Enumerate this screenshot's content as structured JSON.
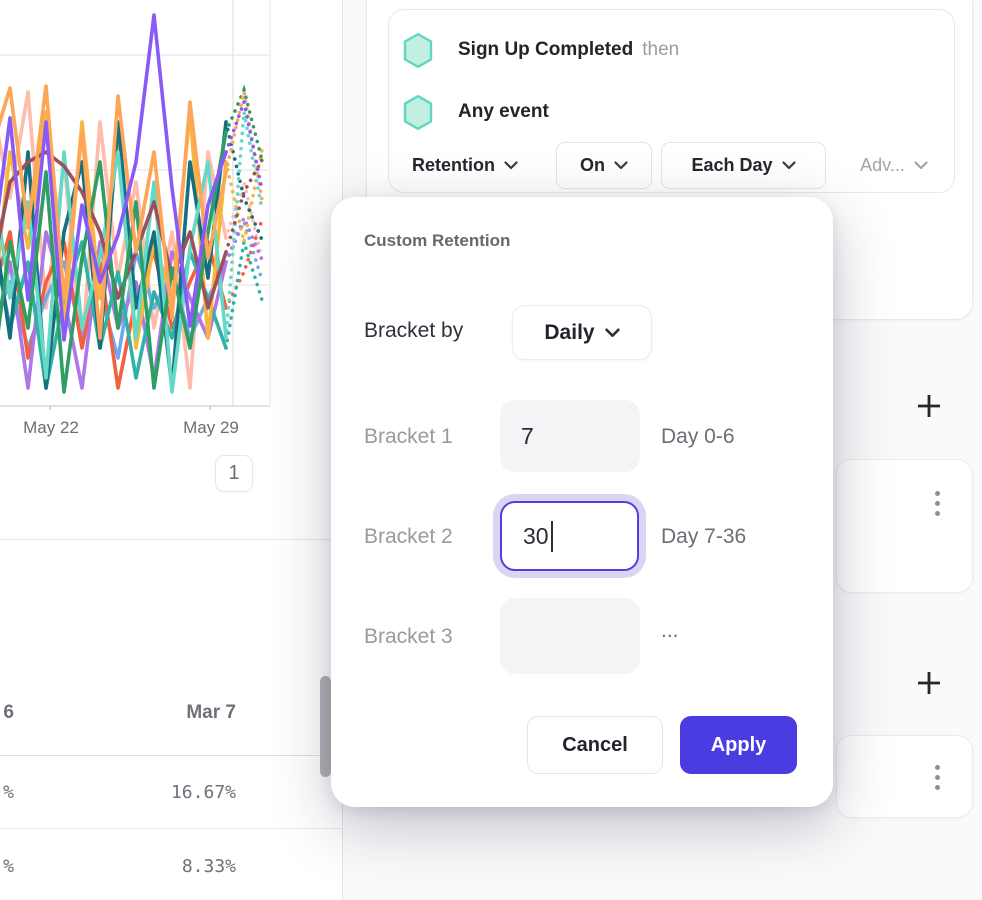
{
  "query_panel": {
    "step1": {
      "event": "Sign Up Completed",
      "connector": "then"
    },
    "step2": {
      "event": "Any event"
    },
    "controls": {
      "measurement": "Retention",
      "on": "On",
      "granularity": "Each Day",
      "advanced": "Adv..."
    }
  },
  "modal": {
    "title": "Custom Retention",
    "bracket_by_label": "Bracket by",
    "bracket_by_value": "Daily",
    "brackets": [
      {
        "label": "Bracket 1",
        "value": "7",
        "range": "Day 0-6"
      },
      {
        "label": "Bracket 2",
        "value": "30",
        "range": "Day 7-36"
      },
      {
        "label": "Bracket 3",
        "value": "",
        "range": "..."
      }
    ],
    "cancel_label": "Cancel",
    "apply_label": "Apply",
    "accent_color": "#4b3ce1",
    "focus_ring_color": "#dad5f5"
  },
  "chart": {
    "type": "line",
    "x_tick_labels": [
      "May 22",
      "May 29"
    ],
    "pagination_page": "1",
    "note": "multi-cohort retention spaghetti lines, right tails dotted (incomplete data)",
    "series": [
      {
        "color": "#ffbcab",
        "values": [
          102,
          198,
          92,
          308,
          162,
          348,
          122,
          278,
          182,
          328,
          232,
          388,
          152,
          238,
          182,
          260
        ]
      },
      {
        "color": "#6fa8ef",
        "values": [
          328,
          282,
          348,
          298,
          262,
          338,
          292,
          358,
          252,
          308,
          272,
          338,
          298,
          262,
          222,
          280
        ]
      },
      {
        "color": "#f2603f",
        "values": [
          298,
          232,
          358,
          282,
          242,
          348,
          262,
          388,
          298,
          252,
          328,
          282,
          242,
          308,
          272,
          220
        ]
      },
      {
        "color": "#ae77e8",
        "values": [
          348,
          262,
          388,
          232,
          298,
          388,
          242,
          328,
          282,
          378,
          252,
          298,
          338,
          262,
          218,
          260
        ]
      },
      {
        "color": "#2fb3a6",
        "values": [
          232,
          328,
          262,
          388,
          298,
          242,
          348,
          272,
          378,
          292,
          338,
          252,
          298,
          348,
          242,
          300
        ]
      },
      {
        "color": "#f6b73c",
        "values": [
          318,
          152,
          248,
          112,
          328,
          122,
          298,
          142,
          348,
          242,
          298,
          112,
          338,
          162,
          242,
          150
        ]
      },
      {
        "color": "#156f80",
        "values": [
          212,
          338,
          152,
          388,
          232,
          162,
          348,
          122,
          308,
          232,
          388,
          162,
          278,
          122,
          198,
          240
        ]
      },
      {
        "color": "#66d9c6",
        "values": [
          172,
          298,
          202,
          378,
          152,
          328,
          258,
          152,
          338,
          182,
          392,
          248,
          162,
          338,
          112,
          210
        ]
      },
      {
        "color": "#9c4f5c",
        "values": [
          272,
          182,
          162,
          152,
          166,
          192,
          232,
          298,
          252,
          202,
          278,
          232,
          308,
          252,
          192,
          160
        ]
      },
      {
        "color": "#2f9e63",
        "values": [
          378,
          242,
          328,
          172,
          392,
          258,
          162,
          328,
          202,
          388,
          268,
          348,
          232,
          132,
          90,
          160
        ]
      },
      {
        "color": "#ffa558",
        "values": [
          148,
          88,
          228,
          86,
          298,
          132,
          338,
          96,
          252,
          152,
          318,
          102,
          258,
          172,
          92,
          200
        ]
      },
      {
        "color": "#8a5af8",
        "values": [
          255,
          118,
          300,
          122,
          340,
          205,
          282,
          235,
          162,
          15,
          188,
          326,
          205,
          152,
          102,
          190
        ]
      }
    ]
  },
  "table": {
    "header": [
      "6",
      "Mar 7"
    ],
    "rows": [
      [
        "%",
        "16.67%"
      ],
      [
        "%",
        "8.33%"
      ]
    ]
  },
  "icons": {
    "hexagon_fill": "#c3efe3",
    "hexagon_stroke": "#62d6c5",
    "plus": "+",
    "kebab": "⋮",
    "chevron": "⌄"
  }
}
